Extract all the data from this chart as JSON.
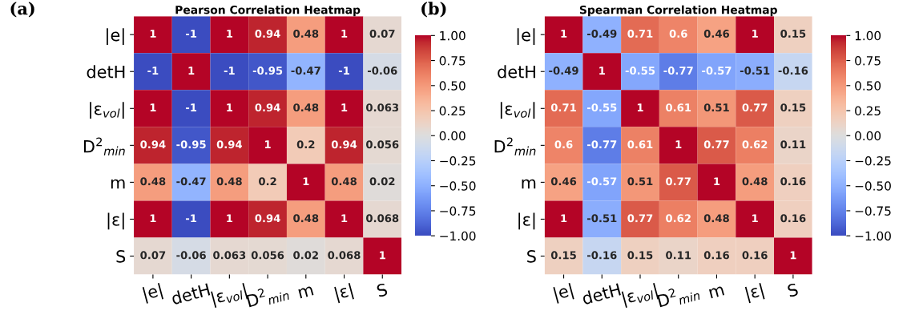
{
  "chart_data": [
    {
      "type": "heatmap",
      "title": "Pearson Correlation Heatmap",
      "annotations": [
        "(a)"
      ],
      "categories": [
        "|e|",
        "detH",
        "|ε$_{vol}$|",
        "D$^{2}$$_{min}$",
        "m",
        "|ε|",
        "S"
      ],
      "y_categories": [
        "|e|",
        "detH",
        "|ε$_{vol}$|",
        "D$^{2}$$_{min}$",
        "m",
        "|ε|",
        "S"
      ],
      "cells": [
        [
          1,
          -1,
          1,
          0.94,
          0.48,
          1,
          0.07
        ],
        [
          -1,
          1,
          -1,
          -0.95,
          -0.47,
          -1,
          -0.06
        ],
        [
          1,
          -1,
          1,
          0.94,
          0.48,
          1,
          0.063
        ],
        [
          0.94,
          -0.95,
          0.94,
          1,
          0.2,
          0.94,
          0.056
        ],
        [
          0.48,
          -0.47,
          0.48,
          0.2,
          1,
          0.48,
          0.02
        ],
        [
          1,
          -1,
          1,
          0.94,
          0.48,
          1,
          0.068
        ],
        [
          0.07,
          -0.06,
          0.063,
          0.056,
          0.02,
          0.068,
          1
        ]
      ],
      "data_labels": true,
      "clim": [
        -1,
        1
      ],
      "cticks": [
        {
          "value": -1,
          "label": "−1.00"
        },
        {
          "value": -0.75,
          "label": "−0.75"
        },
        {
          "value": -0.5,
          "label": "−0.50"
        },
        {
          "value": -0.25,
          "label": "−0.25"
        },
        {
          "value": 0,
          "label": "0.00"
        },
        {
          "value": 0.25,
          "label": "0.25"
        },
        {
          "value": 0.5,
          "label": "0.50"
        },
        {
          "value": 0.75,
          "label": "0.75"
        },
        {
          "value": 1,
          "label": "1.00"
        }
      ]
    },
    {
      "type": "heatmap",
      "title": "Spearman Correlation Heatmap",
      "annotations": [
        "(b)"
      ],
      "categories": [
        "|e|",
        "detH",
        "|ε$_{vol}$|",
        "D$^{2}$$_{min}$",
        "m",
        "|ε|",
        "S"
      ],
      "y_categories": [
        "|e|",
        "detH",
        "|ε$_{vol}$|",
        "D$^{2}$$_{min}$",
        "m",
        "|ε|",
        "S"
      ],
      "cells": [
        [
          1,
          -0.49,
          0.71,
          0.6,
          0.46,
          1,
          0.15
        ],
        [
          -0.49,
          1,
          -0.55,
          -0.77,
          -0.57,
          -0.51,
          -0.16
        ],
        [
          0.71,
          -0.55,
          1,
          0.61,
          0.51,
          0.77,
          0.15
        ],
        [
          0.6,
          -0.77,
          0.61,
          1,
          0.77,
          0.62,
          0.11
        ],
        [
          0.46,
          -0.57,
          0.51,
          0.77,
          1,
          0.48,
          0.16
        ],
        [
          1,
          -0.51,
          0.77,
          0.62,
          0.48,
          1,
          0.16
        ],
        [
          0.15,
          -0.16,
          0.15,
          0.11,
          0.16,
          0.16,
          1
        ]
      ],
      "data_labels": true,
      "clim": [
        -1,
        1
      ],
      "cticks": [
        {
          "value": -1,
          "label": "−1.00"
        },
        {
          "value": -0.75,
          "label": "−0.75"
        },
        {
          "value": -0.5,
          "label": "−0.50"
        },
        {
          "value": -0.25,
          "label": "−0.25"
        },
        {
          "value": 0,
          "label": "0.00"
        },
        {
          "value": 0.25,
          "label": "0.25"
        },
        {
          "value": 0.5,
          "label": "0.50"
        },
        {
          "value": 0.75,
          "label": "0.75"
        },
        {
          "value": 1,
          "label": "1.00"
        }
      ]
    }
  ]
}
